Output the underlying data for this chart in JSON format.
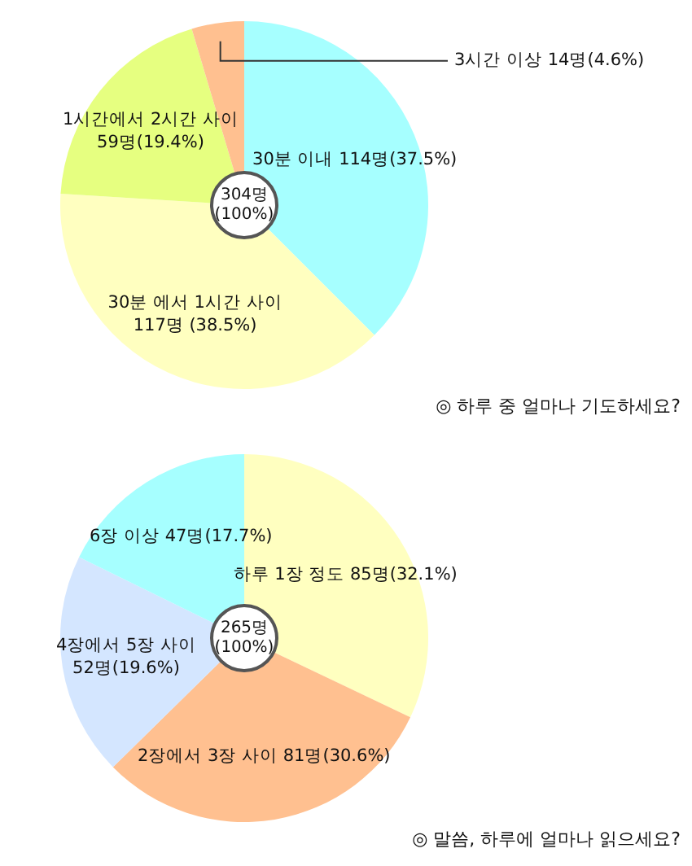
{
  "chart_data": [
    {
      "type": "pie",
      "title": "◎ 하루 중 얼마나 기도하세요?",
      "categories": [
        "30분 이내",
        "30분 에서 1시간 사이",
        "1시간에서 2시간 사이",
        "3시간 이상"
      ],
      "values": [
        114,
        117,
        59,
        14
      ],
      "value_labels": [
        "114명(37.5%)",
        "117명 (38.5%)",
        "59명(19.4%)",
        "14명(4.6%)"
      ],
      "colors": [
        "#a6ffff",
        "#ffffc0",
        "#e6ff80",
        "#ffc090"
      ],
      "annotations": [
        "304명",
        "(100%)"
      ]
    },
    {
      "type": "pie",
      "title": "◎ 말씀, 하루에 얼마나 읽으세요?",
      "categories": [
        "하루 1장 정도",
        "2장에서 3장 사이",
        "4장에서 5장 사이",
        "6장 이상"
      ],
      "values": [
        85,
        81,
        52,
        47
      ],
      "value_labels": [
        "85명(32.1%)",
        "81명(30.6%)",
        "52명(19.6%)",
        "47명(17.7%)"
      ],
      "colors": [
        "#ffffc0",
        "#ffc090",
        "#d4e6ff",
        "#a6ffff"
      ],
      "annotations": [
        "265명",
        "(100%)"
      ]
    }
  ]
}
